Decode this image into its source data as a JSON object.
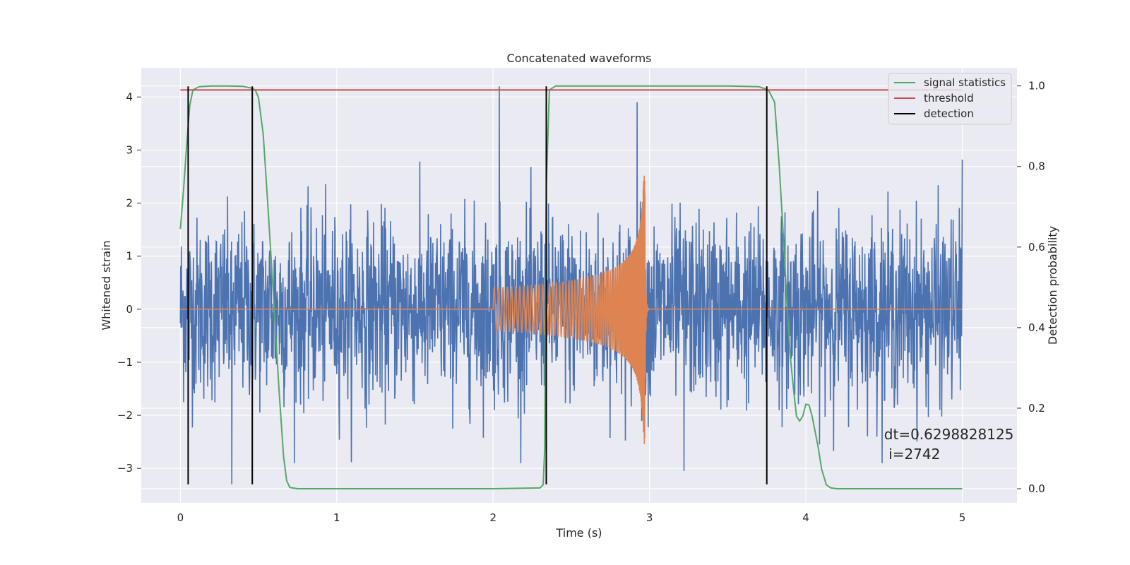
{
  "chart_data": {
    "type": "line",
    "title": "Concatenated waveforms",
    "xlabel": "Time (s)",
    "ylabel": "Whitened strain",
    "ylabel_right": "Detection probability",
    "xlim": [
      -0.25,
      5.35
    ],
    "ylim": [
      -3.65,
      4.55
    ],
    "ylim_right": [
      -0.035,
      1.045
    ],
    "x_ticks": [
      "0",
      "1",
      "2",
      "3",
      "4",
      "5"
    ],
    "y_ticks": [
      "−3",
      "−2",
      "−1",
      "0",
      "1",
      "2",
      "3",
      "4"
    ],
    "y_ticks_right": [
      "0.0",
      "0.2",
      "0.4",
      "0.6",
      "0.8",
      "1.0"
    ],
    "grid": true,
    "legend_position": "top-right",
    "colors": {
      "strain": "#4c72b0",
      "injected": "#dd8452",
      "signal_statistics": "#55a868",
      "threshold": "#c44e52",
      "detection": "#000000",
      "background": "#eaeaf2"
    },
    "series": [
      {
        "name": "signal statistics",
        "axis": "right",
        "x": [
          0.0,
          0.02,
          0.04,
          0.06,
          0.08,
          0.12,
          0.2,
          0.3,
          0.4,
          0.45,
          0.48,
          0.5,
          0.53,
          0.56,
          0.6,
          0.63,
          0.66,
          0.68,
          0.7,
          0.75,
          1.0,
          1.5,
          2.0,
          2.3,
          2.32,
          2.33,
          2.34,
          2.36,
          2.4,
          3.0,
          3.5,
          3.7,
          3.76,
          3.8,
          3.83,
          3.86,
          3.88,
          3.9,
          3.92,
          3.94,
          3.96,
          3.98,
          4.0,
          4.02,
          4.04,
          4.06,
          4.08,
          4.1,
          4.13,
          4.16,
          4.2,
          4.5,
          5.0
        ],
        "y": [
          0.645,
          0.74,
          0.85,
          0.95,
          0.99,
          0.998,
          1.0,
          1.0,
          0.999,
          0.995,
          0.99,
          0.97,
          0.88,
          0.7,
          0.45,
          0.25,
          0.08,
          0.02,
          0.003,
          0.0,
          0.0,
          0.0,
          0.0,
          0.002,
          0.01,
          0.1,
          0.75,
          0.99,
          1.0,
          1.0,
          1.0,
          0.998,
          0.99,
          0.96,
          0.8,
          0.6,
          0.45,
          0.33,
          0.25,
          0.18,
          0.168,
          0.18,
          0.21,
          0.208,
          0.18,
          0.14,
          0.1,
          0.05,
          0.01,
          0.002,
          0.0,
          0.0,
          0.0
        ]
      },
      {
        "name": "threshold",
        "axis": "right",
        "x": [
          0.0,
          5.0
        ],
        "y": [
          0.99,
          0.99
        ]
      },
      {
        "name": "detection",
        "axis": "left",
        "x": [
          0.05,
          0.46,
          2.34,
          3.75
        ],
        "y_range": [
          -3.3,
          4.2
        ]
      }
    ],
    "strain_noise": {
      "x_range": [
        0.0,
        5.0
      ],
      "y_extent": [
        -3.3,
        4.2
      ],
      "peaks": [
        {
          "x": 2.04,
          "y": 4.2
        },
        {
          "x": 2.92,
          "y": 3.9
        },
        {
          "x": 0.33,
          "y": -3.3
        },
        {
          "x": 3.22,
          "y": -3.05
        },
        {
          "x": 5.0,
          "y": 2.82
        }
      ]
    },
    "injected_chirp": {
      "x_range": [
        2.0,
        3.0
      ],
      "start_amplitude": 0.4,
      "peak_amplitude": 2.6,
      "peak_x": 2.97
    },
    "annotation": {
      "text_line1": "dt=0.6298828125",
      "text_line2": " i=2742",
      "x": 4.5,
      "y": -2.45
    },
    "legend": [
      "signal statistics",
      "threshold",
      "detection"
    ]
  }
}
